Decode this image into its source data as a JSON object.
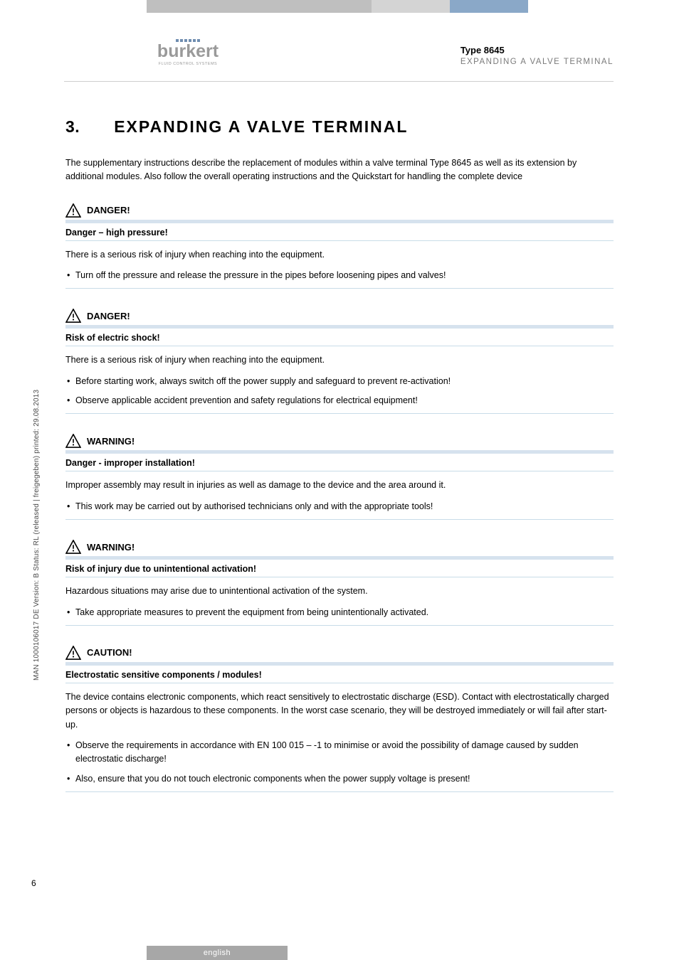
{
  "header": {
    "logo_text": "burkert",
    "logo_sub": "FLUID CONTROL SYSTEMS",
    "type_label": "Type 8645",
    "subtitle": "EXPANDING A VALVE TERMINAL"
  },
  "colors": {
    "top_gray1": "#bfbfbf",
    "top_gray2": "#d4d4d4",
    "top_blue": "#8aa8c8",
    "alert_bar": "#d6e2ee",
    "rule": "#c8dce8",
    "logo_gray": "#9a9a9a",
    "logo_dot": "#6f8db0"
  },
  "section": {
    "number": "3.",
    "title": "EXPANDING A VALVE TERMINAL",
    "intro": "The supplementary instructions describe the replacement of modules within a valve terminal Type 8645 as well as its extension by additional modules. Also follow the overall operating instructions and the Quickstart for handling the complete device"
  },
  "alerts": [
    {
      "label": "DANGER!",
      "subtitle": "Danger – high pressure!",
      "body": "There is a serious risk of injury when reaching into the equipment.",
      "items": [
        "Turn off the pressure and release the pressure in the pipes before loosening pipes and valves!"
      ]
    },
    {
      "label": "DANGER!",
      "subtitle": "Risk of electric shock!",
      "body": "There is a serious risk of injury when reaching into the equipment.",
      "items": [
        "Before starting work, always switch off the power supply and safeguard to prevent re-activation!",
        "Observe applicable accident prevention and safety regulations for electrical equipment!"
      ]
    },
    {
      "label": "WARNING!",
      "subtitle": "Danger - improper installation!",
      "body": "Improper assembly may result in injuries as well as damage to the device and the area around it.",
      "items": [
        "This work may be carried out by authorised technicians only and with the appropriate tools!"
      ]
    },
    {
      "label": "WARNING!",
      "subtitle": "Risk of injury due to unintentional activation!",
      "body": "Hazardous situations may arise due to unintentional activation of the system.",
      "items": [
        "Take appropriate measures to prevent the equipment from being unintentionally activated."
      ]
    },
    {
      "label": "CAUTION!",
      "subtitle": "Electrostatic sensitive components / modules!",
      "body": "The device contains electronic components, which react sensitively to electrostatic discharge (ESD). Contact with electrostatically charged persons or objects is hazardous to these components. In the worst case scenario, they will be destroyed immediately or will fail after start-up.",
      "items": [
        "Observe the requirements in accordance with EN 100 015 – -1 to minimise or avoid the possibility of damage caused by sudden electrostatic discharge!",
        "Also, ensure that you do not touch electronic components when the power supply voltage is present!"
      ]
    }
  ],
  "side_text": "MAN  1000106017  DE  Version: B  Status: RL (released | freigegeben)  printed: 29.08.2013",
  "page_number": "6",
  "footer_lang": "english"
}
